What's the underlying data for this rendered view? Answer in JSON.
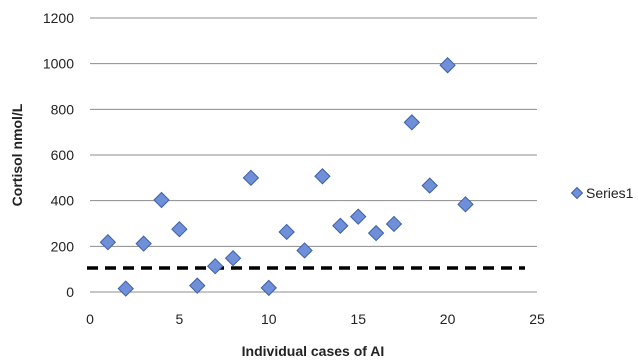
{
  "chart_data": {
    "type": "scatter",
    "xlabel": "Individual cases of AI",
    "ylabel": "Cortisol nmol/L",
    "xlim": [
      0,
      25
    ],
    "ylim": [
      0,
      1200
    ],
    "xticks": [
      0,
      5,
      10,
      15,
      20,
      25
    ],
    "yticks": [
      0,
      200,
      400,
      600,
      800,
      1000,
      1200
    ],
    "grid": "horizontal",
    "legend_position": "right",
    "series": [
      {
        "name": "Series1",
        "color": "#6f8fd8",
        "marker": "diamond",
        "x": [
          1,
          2,
          3,
          4,
          5,
          6,
          7,
          8,
          9,
          10,
          11,
          12,
          13,
          14,
          15,
          16,
          17,
          18,
          19,
          20,
          21
        ],
        "y": [
          218,
          15,
          212,
          403,
          275,
          28,
          113,
          148,
          500,
          18,
          263,
          182,
          507,
          290,
          330,
          258,
          298,
          743,
          466,
          993,
          384
        ]
      }
    ],
    "reference_line": {
      "y": 105,
      "style": "dashed",
      "color": "#000000"
    }
  }
}
